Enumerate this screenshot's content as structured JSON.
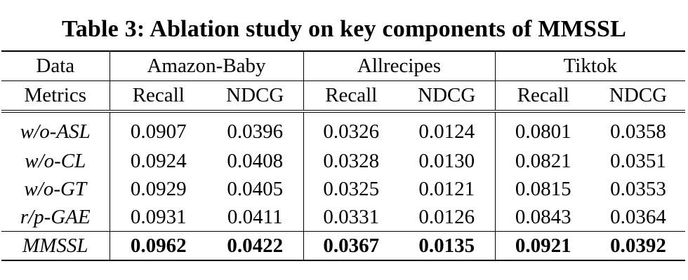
{
  "caption": "Table 3: Ablation study on key components of MMSSL",
  "header": {
    "data_label": "Data",
    "metrics_label": "Metrics",
    "datasets": [
      "Amazon-Baby",
      "Allrecipes",
      "Tiktok"
    ],
    "metrics": [
      "Recall",
      "NDCG",
      "Recall",
      "NDCG",
      "Recall",
      "NDCG"
    ]
  },
  "rows": [
    {
      "name": "w/o-ASL",
      "values": [
        "0.0907",
        "0.0396",
        "0.0326",
        "0.0124",
        "0.0801",
        "0.0358"
      ]
    },
    {
      "name": "w/o-CL",
      "values": [
        "0.0924",
        "0.0408",
        "0.0328",
        "0.0130",
        "0.0821",
        "0.0351"
      ]
    },
    {
      "name": "w/o-GT",
      "values": [
        "0.0929",
        "0.0405",
        "0.0325",
        "0.0121",
        "0.0815",
        "0.0353"
      ]
    },
    {
      "name": "r/p-GAE",
      "values": [
        "0.0931",
        "0.0411",
        "0.0331",
        "0.0126",
        "0.0843",
        "0.0364"
      ]
    }
  ],
  "final_row": {
    "name": "MMSSL",
    "values": [
      "0.0962",
      "0.0422",
      "0.0367",
      "0.0135",
      "0.0921",
      "0.0392"
    ]
  }
}
